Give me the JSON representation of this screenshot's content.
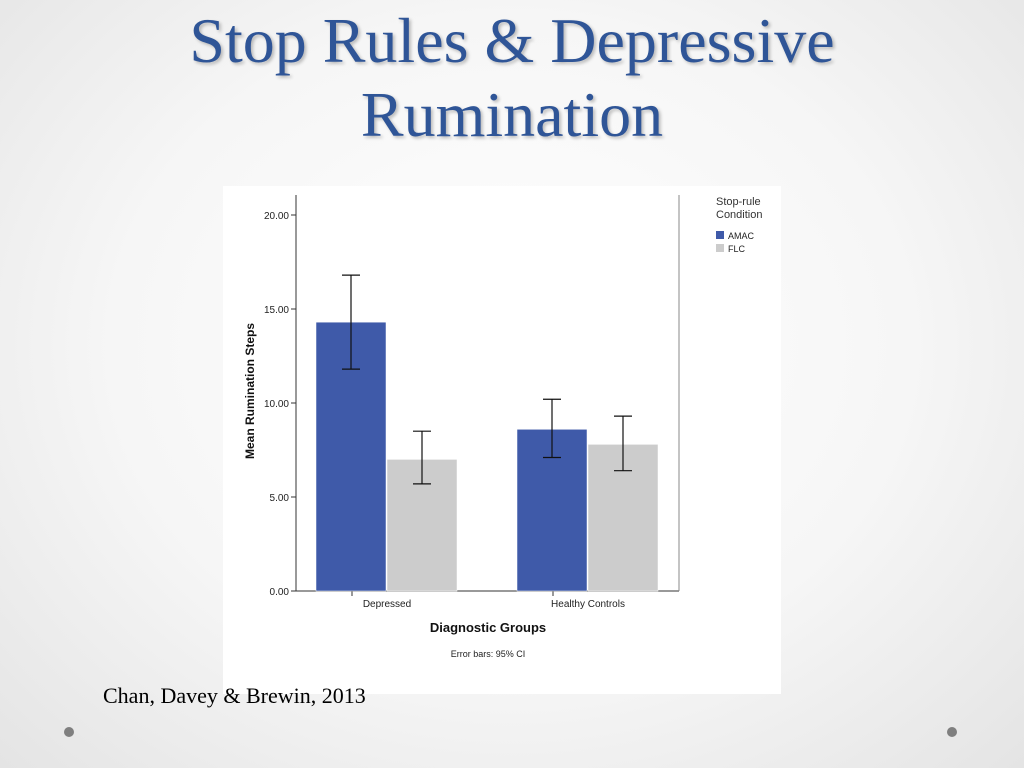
{
  "slide": {
    "title_line1": "Stop Rules & Depressive",
    "title_line2": "Rumination",
    "citation": "Chan, Davey & Brewin, 2013"
  },
  "chart_data": {
    "type": "bar",
    "categories": [
      "Depressed",
      "Healthy Controls"
    ],
    "series": [
      {
        "name": "AMAC",
        "color": "#3f5aa9",
        "values": [
          14.3,
          8.6
        ],
        "ci_low": [
          11.8,
          7.1
        ],
        "ci_high": [
          16.8,
          10.2
        ]
      },
      {
        "name": "FLC",
        "color": "#cccccc",
        "values": [
          7.0,
          7.8
        ],
        "ci_low": [
          5.7,
          6.4
        ],
        "ci_high": [
          8.5,
          9.3
        ]
      }
    ],
    "yticks": [
      "0.00",
      "5.00",
      "10.00",
      "15.00",
      "20.00"
    ],
    "ylim": [
      0,
      20.5
    ],
    "xlabel": "Diagnostic Groups",
    "ylabel": "Mean Rumination Steps",
    "legend_title_line1": "Stop-rule",
    "legend_title_line2": "Condition",
    "legend_placement": "top-right",
    "footnote": "Error bars: 95% CI"
  }
}
